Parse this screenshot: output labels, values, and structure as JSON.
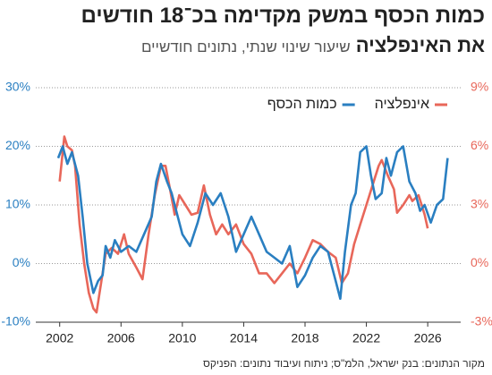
{
  "chart_data": {
    "type": "line",
    "title": [
      "כמות הכסף במשק מקדימה בכ־18 חודשים",
      "את האינפלציה"
    ],
    "subtitle": "שיעור שינוי שנתי, נתונים חודשיים",
    "source": "מקור הנתונים: בנק ישראל, הלמ\"ס; ניתוח ועיבוד נתונים: הפניקס",
    "xlim": [
      2000.5,
      2027.8
    ],
    "xticks": [
      2002,
      2006,
      2010,
      2014,
      2018,
      2022,
      2026
    ],
    "ylim": [
      -10,
      30
    ],
    "yticks": [
      {
        "value": -10,
        "label": "-10%"
      },
      {
        "value": 0,
        "label": "0%"
      },
      {
        "value": 10,
        "label": "10%"
      },
      {
        "value": 20,
        "label": "20%"
      },
      {
        "value": 30,
        "label": "30%"
      }
    ],
    "y2lim": [
      -3,
      9
    ],
    "y2ticks": [
      {
        "value": -3,
        "label": "-3%"
      },
      {
        "value": 0,
        "label": "0%"
      },
      {
        "value": 3,
        "label": "3%"
      },
      {
        "value": 6,
        "label": "6%"
      },
      {
        "value": 9,
        "label": "9%"
      }
    ],
    "grid": true,
    "legend": "top-right",
    "series": [
      {
        "name": "אינפלציה",
        "color": "#e8675a",
        "axis": "y2",
        "x": [
          2002.0,
          2002.3,
          2002.5,
          2002.8,
          2003.0,
          2003.3,
          2003.6,
          2003.9,
          2004.2,
          2004.4,
          2004.7,
          2005.0,
          2005.4,
          2005.8,
          2006.2,
          2006.5,
          2007.0,
          2007.4,
          2007.8,
          2008.2,
          2008.6,
          2008.9,
          2009.2,
          2009.5,
          2009.8,
          2010.2,
          2010.6,
          2011.0,
          2011.4,
          2011.8,
          2012.2,
          2012.6,
          2013.0,
          2013.5,
          2014.0,
          2014.5,
          2015.0,
          2015.5,
          2016.0,
          2016.5,
          2017.0,
          2017.5,
          2018.0,
          2018.5,
          2019.0,
          2019.5,
          2020.0,
          2020.4,
          2020.8,
          2021.2,
          2021.6,
          2022.0,
          2022.4,
          2022.8,
          2023.0,
          2023.4,
          2023.8,
          2024.0,
          2024.4,
          2024.8,
          2025.0,
          2025.4,
          2025.8,
          2026.0
        ],
        "values": [
          4.2,
          6.5,
          6,
          5.8,
          5,
          2,
          0,
          -1.5,
          -2.3,
          -2.5,
          -1,
          0.5,
          0.8,
          0.5,
          1.5,
          0.5,
          -0.2,
          -0.8,
          1.5,
          3.5,
          5,
          5,
          3.8,
          2.5,
          3.5,
          3,
          2.5,
          2.6,
          4,
          2.5,
          1.5,
          2,
          1.5,
          2,
          1,
          0.5,
          -0.5,
          -0.5,
          -1,
          -0.5,
          0,
          -0.5,
          0.3,
          1.2,
          1,
          0.6,
          0.3,
          -1,
          -0.5,
          1,
          2,
          3,
          4,
          5,
          5.3,
          4.5,
          3.8,
          2.6,
          3,
          3.5,
          3.2,
          3.5,
          2.5,
          1.8
        ]
      },
      {
        "name": "כמות הכסף",
        "color": "#2a7fc1",
        "x": [
          2001.9,
          2002.2,
          2002.5,
          2002.8,
          2003.2,
          2003.5,
          2003.8,
          2004.2,
          2004.5,
          2004.8,
          2005.0,
          2005.3,
          2005.6,
          2006.0,
          2006.5,
          2007.0,
          2007.5,
          2008.0,
          2008.3,
          2008.6,
          2009.0,
          2009.3,
          2009.6,
          2010.0,
          2010.5,
          2011.0,
          2011.5,
          2012.0,
          2012.5,
          2013.0,
          2013.5,
          2014.0,
          2014.5,
          2015.0,
          2015.5,
          2016.0,
          2016.5,
          2017.0,
          2017.5,
          2018.0,
          2018.5,
          2019.0,
          2019.5,
          2020.0,
          2020.3,
          2020.6,
          2021.0,
          2021.3,
          2021.6,
          2022.0,
          2022.3,
          2022.6,
          2023.0,
          2023.3,
          2023.6,
          2024.0,
          2024.4,
          2024.8,
          2025.2,
          2025.5,
          2025.8,
          2026.2,
          2026.6,
          2027.0,
          2027.3
        ],
        "values": [
          18,
          20,
          17,
          19,
          15,
          8,
          0,
          -5,
          -3,
          -2,
          3,
          1,
          4,
          2,
          3,
          2,
          5,
          8,
          14,
          17,
          14,
          12,
          9,
          5,
          3,
          7,
          12,
          10,
          12,
          8,
          2,
          5,
          8,
          5,
          2,
          1,
          0,
          3,
          -4,
          -2,
          1,
          3,
          2,
          -3,
          -6,
          2,
          10,
          12,
          19,
          20,
          15,
          11,
          12,
          18,
          15,
          19,
          20,
          14,
          12,
          9,
          10,
          7,
          10,
          11,
          18
        ]
      }
    ]
  }
}
